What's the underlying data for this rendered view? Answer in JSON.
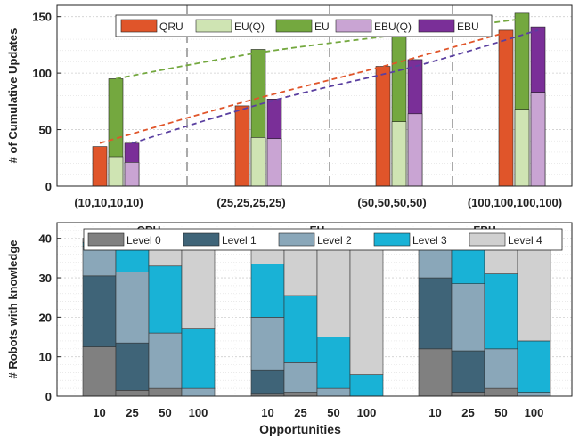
{
  "chart_data": [
    {
      "type": "bar",
      "title": "",
      "xlabel": "",
      "ylabel": "# of Cumulative Updates",
      "ylim": [
        0,
        160
      ],
      "yticks": [
        "0",
        "50",
        "100",
        "150"
      ],
      "grid": true,
      "legend_placement": "top",
      "categories": [
        "(10,10,10,10)",
        "(25,25,25,25)",
        "(50,50,50,50)",
        "(100,100,100,100)"
      ],
      "bars": [
        {
          "name": "QRU",
          "color": "#e0552a",
          "values": [
            35,
            71,
            106,
            138
          ]
        },
        {
          "name": "EU",
          "color": "#74a83f",
          "values": [
            95,
            121,
            138,
            153
          ],
          "inner": {
            "name": "EU(Q)",
            "color": "#cfe4b3",
            "values": [
              26,
              43,
              57,
              68
            ]
          }
        },
        {
          "name": "EBU",
          "color": "#7a2f98",
          "values": [
            38,
            77,
            112,
            141
          ],
          "inner": {
            "name": "EBU(Q)",
            "color": "#c9a4d3",
            "values": [
              21,
              42,
              64,
              83
            ]
          }
        }
      ],
      "legend": [
        {
          "label": "QRU",
          "color": "#e0552a"
        },
        {
          "label": "EU(Q)",
          "color": "#cfe4b3"
        },
        {
          "label": "EU",
          "color": "#74a83f"
        },
        {
          "label": "EBU(Q)",
          "color": "#c9a4d3"
        },
        {
          "label": "EBU",
          "color": "#7a2f98"
        }
      ],
      "trend_lines": [
        {
          "color": "#74a83f",
          "x": [
            10,
            25,
            50,
            100
          ],
          "y": [
            95,
            118,
            134,
            148
          ]
        },
        {
          "color": "#e0552a",
          "x": [
            10,
            25,
            50,
            100
          ],
          "y": [
            38,
            74,
            106,
            136
          ]
        },
        {
          "color": "#5a3fa0",
          "x": [
            10,
            25,
            50,
            100
          ],
          "y": [
            38,
            76,
            106,
            138
          ]
        }
      ]
    },
    {
      "type": "bar",
      "stacked": true,
      "title": "",
      "xlabel": "Opportunities",
      "ylabel": "# Robots with knowledge",
      "ylim": [
        0,
        40
      ],
      "yticks": [
        "0",
        "10",
        "20",
        "30",
        "40"
      ],
      "grid": true,
      "legend_placement": "top",
      "x_tick_labels": [
        "10",
        "25",
        "50",
        "100"
      ],
      "levels": [
        {
          "label": "Level 0",
          "color": "#808080"
        },
        {
          "label": "Level 1",
          "color": "#3f6478"
        },
        {
          "label": "Level 2",
          "color": "#8aa7b9"
        },
        {
          "label": "Level 3",
          "color": "#19b2d6"
        },
        {
          "label": "Level 4",
          "color": "#d0d0d0"
        }
      ],
      "groups": [
        {
          "name": "QRU",
          "stacks": [
            [
              12.5,
              18,
              7.5,
              1,
              1
            ],
            [
              1.5,
              12,
              18,
              7,
              1.5
            ],
            [
              2,
              0,
              14,
              17,
              7
            ],
            [
              0,
              0,
              2,
              15,
              23
            ]
          ]
        },
        {
          "name": "EU",
          "stacks": [
            [
              0.5,
              6,
              13.5,
              13.5,
              6.5
            ],
            [
              1,
              0,
              7.5,
              17,
              14.5
            ],
            [
              0,
              0,
              2,
              13,
              25
            ],
            [
              0,
              0,
              0,
              5.5,
              34.5
            ]
          ]
        },
        {
          "name": "EBU",
          "stacks": [
            [
              12,
              18,
              8,
              1,
              1
            ],
            [
              1,
              10.5,
              17,
              9.5,
              2
            ],
            [
              2,
              0,
              10,
              19,
              9
            ],
            [
              0,
              0,
              1,
              13,
              26
            ]
          ]
        }
      ]
    }
  ]
}
